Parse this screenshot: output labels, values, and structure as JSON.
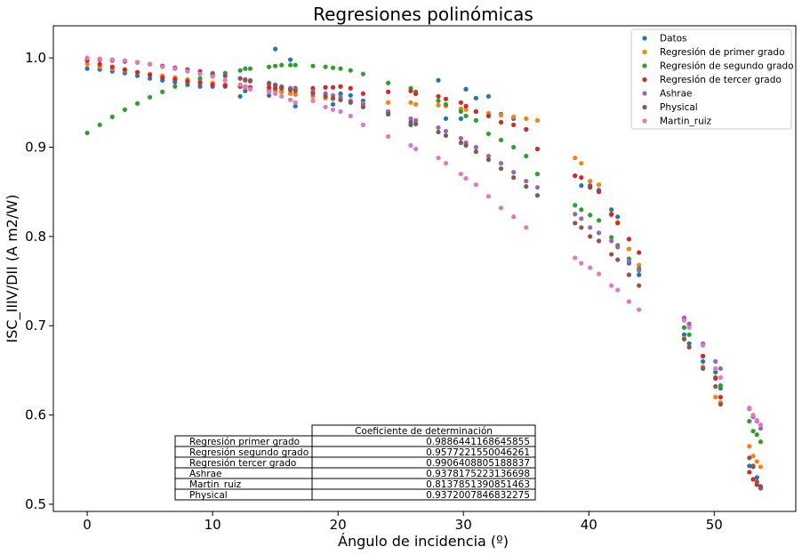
{
  "chart_data": {
    "type": "scatter",
    "title": "Regresiones polinómicas",
    "xlabel": "Ángulo de incidencia (º)",
    "ylabel": "ISC_IIIV/DII (A m2/W)",
    "xlim": [
      -2.7,
      56.5
    ],
    "ylim": [
      0.492,
      1.036
    ],
    "xticks": [
      "0",
      "10",
      "20",
      "30",
      "40",
      "50"
    ],
    "xtick_values": [
      0,
      10,
      20,
      30,
      40,
      50
    ],
    "yticks": [
      "0.5",
      "0.6",
      "0.7",
      "0.8",
      "0.9",
      "1.0"
    ],
    "ytick_values": [
      0.5,
      0.6,
      0.7,
      0.8,
      0.9,
      1.0
    ],
    "grid": false,
    "legend_position": "top-right",
    "series": [
      {
        "name": "Datos",
        "color": "#1f77b4",
        "x": [
          0,
          1,
          2,
          3,
          4,
          5,
          6,
          7,
          8,
          9,
          10,
          11,
          12.2,
          12.6,
          13,
          14.5,
          15,
          15.5,
          16.2,
          16.6,
          18,
          19,
          19.6,
          20.2,
          21,
          22,
          24,
          25.8,
          26.2,
          28,
          28.6,
          29.8,
          30.2,
          31,
          32,
          33,
          34,
          35,
          38.9,
          39.4,
          40.1,
          40.8,
          41.8,
          42.3,
          43.2,
          44.0,
          47.6,
          48.0,
          49.1,
          50.1,
          50.5,
          52.8,
          53.1,
          53.4,
          53.7
        ],
        "y": [
          0.988,
          0.987,
          0.985,
          0.983,
          0.98,
          0.977,
          0.975,
          0.973,
          0.97,
          0.968,
          0.968,
          0.968,
          0.957,
          0.963,
          0.965,
          0.958,
          1.01,
          0.962,
          0.998,
          0.946,
          0.962,
          0.96,
          0.948,
          0.96,
          0.958,
          0.952,
          0.938,
          0.925,
          0.96,
          0.975,
          0.932,
          0.932,
          0.965,
          0.955,
          0.957,
          0.937,
          0.932,
          0.92,
          0.868,
          0.857,
          0.857,
          0.852,
          0.83,
          0.822,
          0.77,
          0.757,
          0.69,
          0.68,
          0.66,
          0.648,
          0.63,
          0.543,
          0.543,
          0.53,
          0.52
        ]
      },
      {
        "name": "Regresión de primer grado",
        "color": "#ff7f0e",
        "x": [
          0,
          1,
          2,
          3,
          4,
          5,
          6,
          7,
          8,
          9,
          10,
          11,
          12.2,
          12.6,
          13,
          14.5,
          15,
          15.5,
          16.2,
          16.6,
          18,
          19,
          19.6,
          20.2,
          21,
          22,
          24,
          25.8,
          26.2,
          28,
          28.6,
          29.8,
          30.2,
          31,
          32,
          33,
          34,
          35,
          35.9,
          38.9,
          39.4,
          40.1,
          40.8,
          41.8,
          42.3,
          43.2,
          44.0,
          47.6,
          48.0,
          49.1,
          50.1,
          50.5,
          52.8,
          53.1,
          53.4,
          53.7
        ],
        "y": [
          0.993,
          0.99,
          0.988,
          0.986,
          0.984,
          0.982,
          0.98,
          0.978,
          0.976,
          0.974,
          0.972,
          0.97,
          0.968,
          0.967,
          0.966,
          0.964,
          0.963,
          0.962,
          0.96,
          0.959,
          0.957,
          0.955,
          0.954,
          0.953,
          0.951,
          0.949,
          0.95,
          0.95,
          0.948,
          0.947,
          0.946,
          0.943,
          0.942,
          0.94,
          0.938,
          0.936,
          0.934,
          0.932,
          0.93,
          0.888,
          0.882,
          0.862,
          0.858,
          0.824,
          0.816,
          0.786,
          0.768,
          0.686,
          0.676,
          0.654,
          0.62,
          0.614,
          0.565,
          0.554,
          0.548,
          0.542
        ]
      },
      {
        "name": "Regresión de segundo grado",
        "color": "#2ca02c",
        "x": [
          0,
          1,
          2,
          3,
          4,
          5,
          6,
          7,
          8,
          9,
          10,
          11,
          12.2,
          12.6,
          13,
          14.5,
          15,
          15.5,
          16.2,
          16.6,
          18,
          19,
          19.6,
          20.2,
          21,
          22,
          24,
          25.8,
          26.2,
          28,
          28.6,
          29.8,
          30.2,
          31,
          32,
          33,
          34,
          35,
          35.9,
          38.9,
          39.4,
          40.1,
          40.8,
          41.8,
          42.3,
          43.2,
          44.0,
          47.6,
          48.0,
          49.1,
          50.1,
          50.5,
          52.8,
          53.1,
          53.4,
          53.7
        ],
        "y": [
          0.916,
          0.925,
          0.934,
          0.942,
          0.949,
          0.956,
          0.962,
          0.968,
          0.973,
          0.977,
          0.98,
          0.983,
          0.986,
          0.988,
          0.988,
          0.99,
          0.991,
          0.992,
          0.992,
          0.992,
          0.991,
          0.99,
          0.989,
          0.988,
          0.986,
          0.982,
          0.972,
          0.966,
          0.962,
          0.952,
          0.948,
          0.94,
          0.935,
          0.93,
          0.915,
          0.908,
          0.9,
          0.89,
          0.87,
          0.835,
          0.83,
          0.824,
          0.818,
          0.799,
          0.79,
          0.775,
          0.764,
          0.698,
          0.69,
          0.666,
          0.642,
          0.633,
          0.593,
          0.582,
          0.578,
          0.57
        ]
      },
      {
        "name": "Regresión de tercer grado",
        "color": "#d62728",
        "x": [
          0,
          1,
          2,
          3,
          4,
          5,
          6,
          7,
          8,
          9,
          10,
          11,
          12.2,
          12.6,
          13,
          14.5,
          15,
          15.5,
          16.2,
          16.6,
          18,
          19,
          19.6,
          20.2,
          21,
          22,
          24,
          25.8,
          26.2,
          28,
          28.6,
          29.8,
          30.2,
          31,
          32,
          33,
          34,
          35,
          35.9,
          38.9,
          39.4,
          40.1,
          40.8,
          41.8,
          42.3,
          43.2,
          44.0,
          47.6,
          48.0,
          49.1,
          50.1,
          50.5,
          52.8,
          53.1,
          53.4,
          53.7
        ],
        "y": [
          0.997,
          0.993,
          0.99,
          0.987,
          0.984,
          0.981,
          0.978,
          0.976,
          0.974,
          0.972,
          0.97,
          0.969,
          0.968,
          0.968,
          0.967,
          0.967,
          0.966,
          0.966,
          0.966,
          0.966,
          0.966,
          0.967,
          0.967,
          0.968,
          0.966,
          0.96,
          0.962,
          0.963,
          0.96,
          0.957,
          0.954,
          0.95,
          0.946,
          0.94,
          0.935,
          0.928,
          0.925,
          0.92,
          0.898,
          0.868,
          0.866,
          0.855,
          0.85,
          0.825,
          0.815,
          0.797,
          0.782,
          0.708,
          0.702,
          0.666,
          0.641,
          0.62,
          0.536,
          0.528,
          0.522,
          0.518
        ]
      },
      {
        "name": "Ashrae",
        "color": "#9467bd",
        "x": [
          0,
          1,
          2,
          3,
          4,
          5,
          6,
          7,
          8,
          9,
          10,
          11,
          12.2,
          12.6,
          13,
          14.5,
          15,
          15.5,
          16.2,
          16.6,
          18,
          19,
          19.6,
          20.2,
          21,
          22,
          24,
          25.8,
          26.2,
          28,
          28.6,
          29.8,
          30.2,
          31,
          32,
          33,
          34,
          35,
          35.9,
          38.9,
          39.4,
          40.1,
          40.8,
          41.8,
          42.3,
          43.2,
          44.0,
          47.6,
          48.0,
          49.1,
          50.1,
          50.5,
          52.8,
          53.1,
          53.4,
          53.7
        ],
        "y": [
          1.0,
          0.999,
          0.998,
          0.996,
          0.995,
          0.993,
          0.991,
          0.989,
          0.987,
          0.985,
          0.983,
          0.98,
          0.977,
          0.976,
          0.975,
          0.972,
          0.97,
          0.968,
          0.966,
          0.965,
          0.962,
          0.96,
          0.958,
          0.956,
          0.952,
          0.948,
          0.94,
          0.932,
          0.93,
          0.922,
          0.918,
          0.91,
          0.905,
          0.9,
          0.89,
          0.882,
          0.872,
          0.862,
          0.855,
          0.825,
          0.82,
          0.81,
          0.804,
          0.795,
          0.788,
          0.772,
          0.762,
          0.709,
          0.702,
          0.68,
          0.66,
          0.652,
          0.607,
          0.598,
          0.593,
          0.585
        ]
      },
      {
        "name": "Physical",
        "color": "#8c564b",
        "x": [
          0,
          1,
          2,
          3,
          4,
          5,
          6,
          7,
          8,
          9,
          10,
          11,
          12.2,
          12.6,
          13,
          14.5,
          15,
          15.5,
          16.2,
          16.6,
          18,
          19,
          19.6,
          20.2,
          21,
          22,
          24,
          25.8,
          26.2,
          28,
          28.6,
          29.8,
          30.2,
          31,
          32,
          33,
          34,
          35,
          35.9,
          38.9,
          39.4,
          40.1,
          40.8,
          41.8,
          42.3,
          43.2,
          44.0,
          47.6,
          48.0,
          49.1,
          50.1,
          50.5,
          52.8,
          53.1,
          53.4,
          53.7
        ],
        "y": [
          0.999,
          0.998,
          0.997,
          0.996,
          0.995,
          0.993,
          0.991,
          0.989,
          0.987,
          0.985,
          0.982,
          0.98,
          0.977,
          0.975,
          0.974,
          0.971,
          0.969,
          0.967,
          0.964,
          0.963,
          0.96,
          0.957,
          0.955,
          0.953,
          0.95,
          0.945,
          0.937,
          0.928,
          0.926,
          0.917,
          0.913,
          0.905,
          0.902,
          0.895,
          0.886,
          0.876,
          0.866,
          0.856,
          0.846,
          0.815,
          0.81,
          0.8,
          0.795,
          0.78,
          0.774,
          0.757,
          0.745,
          0.685,
          0.676,
          0.652,
          0.632,
          0.612,
          0.552,
          0.542,
          0.525,
          0.519
        ]
      },
      {
        "name": "Martin_ruiz",
        "color": "#e377c2",
        "x": [
          0,
          1,
          2,
          3,
          4,
          5,
          6,
          7,
          8,
          9,
          10,
          11,
          12.2,
          12.6,
          13,
          14.5,
          15,
          15.5,
          16.2,
          16.6,
          18,
          19,
          19.6,
          20.2,
          21,
          22,
          24,
          25.8,
          26.2,
          28,
          28.6,
          29.8,
          30.2,
          31,
          32,
          33,
          34,
          35,
          38.9,
          39.4,
          40.1,
          40.8,
          41.8,
          42.3,
          43.2,
          44.0,
          47.6,
          48.0,
          49.1,
          50.1,
          50.5,
          52.8,
          53.1,
          53.4,
          53.7
        ],
        "y": [
          1.0,
          0.999,
          0.998,
          0.997,
          0.995,
          0.993,
          0.99,
          0.988,
          0.985,
          0.982,
          0.979,
          0.975,
          0.97,
          0.968,
          0.965,
          0.962,
          0.96,
          0.957,
          0.953,
          0.95,
          0.952,
          0.945,
          0.942,
          0.94,
          0.935,
          0.925,
          0.912,
          0.902,
          0.898,
          0.888,
          0.882,
          0.87,
          0.865,
          0.858,
          0.845,
          0.832,
          0.822,
          0.81,
          0.776,
          0.77,
          0.765,
          0.758,
          0.745,
          0.74,
          0.727,
          0.718,
          0.706,
          0.698,
          0.678,
          0.652,
          0.642,
          0.608,
          0.6,
          0.594,
          0.589
        ]
      }
    ],
    "table": {
      "header": "Coeficiente de determinación",
      "rows": [
        {
          "label": "Regresión primer grado",
          "value": "0.9886441168645855"
        },
        {
          "label": "Regresión segundo grado",
          "value": "0.9577221550046261"
        },
        {
          "label": "Regresión tercer grado",
          "value": "0.9906408805188837"
        },
        {
          "label": "Ashrae",
          "value": "0.9378175223136698"
        },
        {
          "label": "Martin_ruiz",
          "value": "0.8137851390851463"
        },
        {
          "label": "Physical",
          "value": "0.9372007846832275"
        }
      ]
    }
  }
}
